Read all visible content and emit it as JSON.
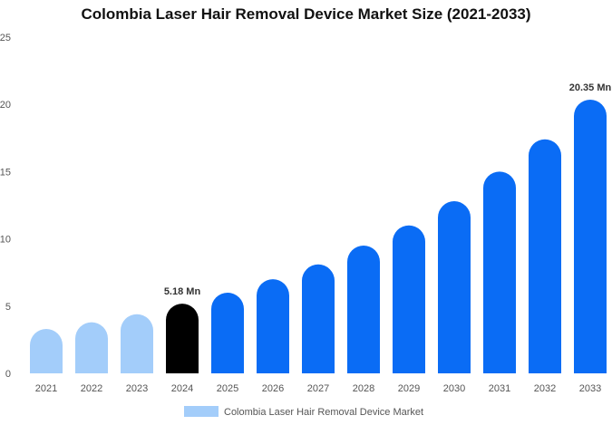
{
  "chart_data": {
    "type": "bar",
    "title": "Colombia Laser Hair Removal Device Market Size (2021-2033)",
    "categories": [
      "2021",
      "2022",
      "2023",
      "2024",
      "2025",
      "2026",
      "2027",
      "2028",
      "2029",
      "2030",
      "2031",
      "2032",
      "2033"
    ],
    "series": [
      {
        "name": "Colombia Laser Hair Removal Device Market",
        "values": [
          3.3,
          3.8,
          4.4,
          5.18,
          6.0,
          7.0,
          8.1,
          9.5,
          11.0,
          12.8,
          15.0,
          17.4,
          20.35
        ]
      }
    ],
    "bar_colors": [
      "#a3cdfa",
      "#a3cdfa",
      "#a3cdfa",
      "#000000",
      "#0a6cf5",
      "#0a6cf5",
      "#0a6cf5",
      "#0a6cf5",
      "#0a6cf5",
      "#0a6cf5",
      "#0a6cf5",
      "#0a6cf5",
      "#0a6cf5"
    ],
    "data_labels": [
      {
        "index": 3,
        "text": "5.18 Mn"
      },
      {
        "index": 12,
        "text": "20.35 Mn"
      }
    ],
    "ylim": [
      0,
      25
    ],
    "yticks": [
      0,
      5,
      10,
      15,
      20,
      25
    ],
    "grid": false,
    "legend": {
      "placement": "bottom",
      "swatch_color": "#a3cdfa"
    },
    "xlabel": "",
    "ylabel": ""
  }
}
